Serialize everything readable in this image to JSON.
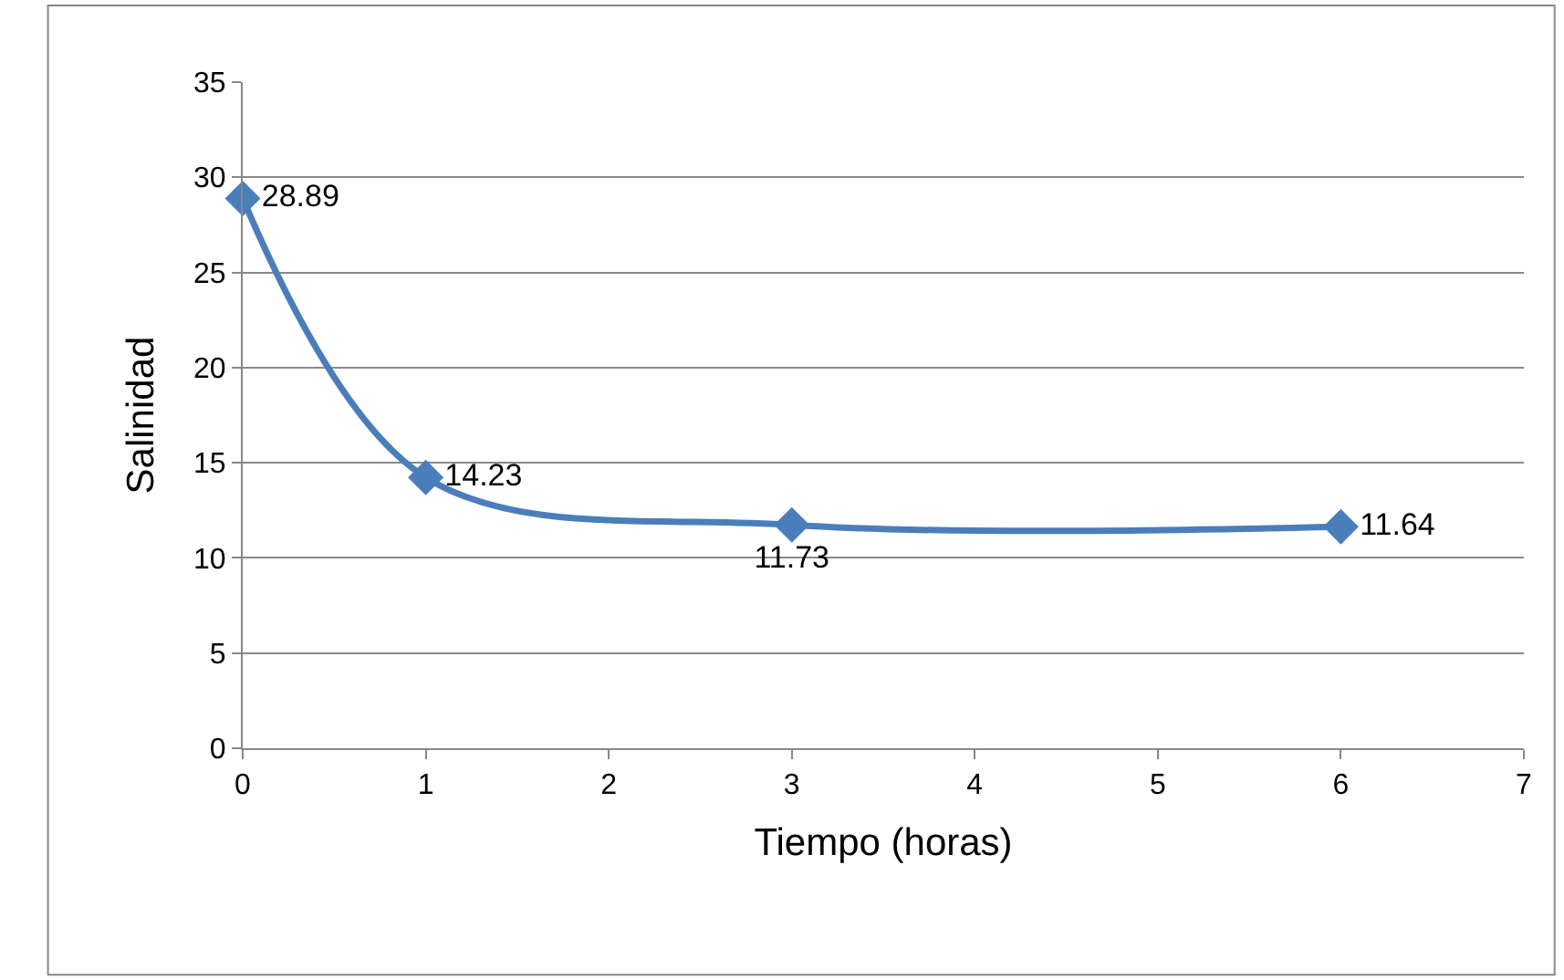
{
  "chart_data": {
    "type": "line",
    "xlabel": "Tiempo (horas)",
    "ylabel": "Salinidad",
    "x": [
      0,
      1,
      3,
      6
    ],
    "series": [
      {
        "color": "#4a7ebb",
        "values": [
          28.89,
          14.23,
          11.73,
          11.64
        ]
      }
    ],
    "xlim": [
      0,
      7
    ],
    "xticks": [
      0,
      1,
      2,
      3,
      4,
      5,
      6,
      7
    ],
    "ylim": [
      0,
      35
    ],
    "yticks": [
      0,
      5,
      10,
      15,
      20,
      25,
      30,
      35
    ],
    "grid": "y",
    "legend": false,
    "marker": "diamond",
    "line_style": "solid",
    "data_labels": true
  }
}
